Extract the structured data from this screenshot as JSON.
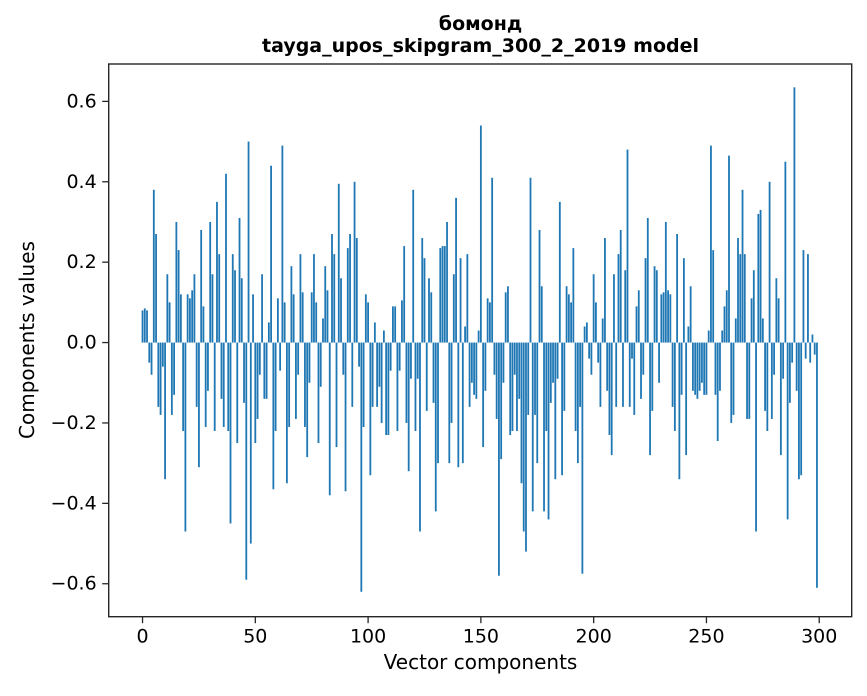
{
  "title": {
    "line1": "бомонд",
    "line2": "tayga_upos_skipgram_300_2_2019 model"
  },
  "axes": {
    "xlabel": "Vector components",
    "ylabel": "Components values",
    "x_ticks": [
      0,
      50,
      100,
      150,
      200,
      250,
      300
    ],
    "x_tick_labels": [
      "0",
      "50",
      "100",
      "150",
      "200",
      "250",
      "300"
    ],
    "y_ticks": [
      -0.6,
      -0.4,
      -0.2,
      0.0,
      0.2,
      0.4,
      0.6
    ],
    "y_tick_labels": [
      "−0.6",
      "−0.4",
      "−0.2",
      "0.0",
      "0.2",
      "0.4",
      "0.6"
    ],
    "xlim": [
      -15,
      314.4
    ],
    "ylim": [
      -0.682,
      0.693
    ]
  },
  "colors": {
    "bar": "#1f77b4",
    "spine": "#262626",
    "background": "#ffffff"
  },
  "chart_data": {
    "type": "bar",
    "title": "бомонд\ntayga_upos_skipgram_300_2_2019 model",
    "xlabel": "Vector components",
    "ylabel": "Components values",
    "x_range": [
      0,
      299
    ],
    "bar_width": 0.8,
    "bar_color": "#1f77b4",
    "grid": false,
    "legend": null,
    "xlim": [
      -15,
      314.4
    ],
    "ylim": [
      -0.682,
      0.693
    ],
    "values": [
      0.08,
      0.085,
      0.08,
      -0.05,
      -0.08,
      0.38,
      0.27,
      -0.16,
      -0.18,
      -0.06,
      -0.34,
      0.17,
      0.1,
      -0.18,
      -0.13,
      0.3,
      0.23,
      0.12,
      -0.22,
      -0.47,
      0.12,
      0.11,
      0.13,
      0.17,
      -0.16,
      -0.31,
      0.28,
      0.09,
      -0.21,
      -0.12,
      0.3,
      0.17,
      -0.22,
      0.35,
      0.22,
      -0.14,
      -0.21,
      0.42,
      -0.22,
      -0.45,
      0.22,
      0.18,
      -0.25,
      0.31,
      0.16,
      -0.15,
      -0.59,
      0.5,
      -0.5,
      0.12,
      -0.25,
      -0.19,
      -0.08,
      0.17,
      -0.14,
      -0.14,
      0.05,
      0.44,
      -0.365,
      -0.22,
      0.11,
      -0.07,
      0.49,
      0.1,
      -0.35,
      -0.21,
      0.19,
      0.12,
      -0.19,
      -0.08,
      0.22,
      0.125,
      -0.21,
      -0.285,
      -0.1,
      0.125,
      0.22,
      0.1,
      -0.25,
      -0.11,
      0.06,
      0.19,
      0.13,
      -0.38,
      0.27,
      0.22,
      -0.26,
      0.395,
      0.16,
      -0.08,
      -0.37,
      0.235,
      0.27,
      -0.16,
      0.4,
      0.26,
      -0.06,
      -0.62,
      -0.21,
      0.12,
      0.1,
      -0.33,
      -0.16,
      0.05,
      -0.16,
      -0.11,
      -0.2,
      0.03,
      -0.23,
      -0.23,
      -0.07,
      0.09,
      0.09,
      -0.22,
      -0.07,
      0.105,
      0.24,
      -0.2,
      -0.32,
      -0.09,
      0.38,
      -0.22,
      -0.09,
      -0.47,
      0.26,
      0.21,
      -0.17,
      0.16,
      0.125,
      -0.15,
      -0.42,
      -0.3,
      0.235,
      0.24,
      0.24,
      0.3,
      -0.3,
      -0.2,
      0.17,
      0.36,
      -0.31,
      0.21,
      -0.3,
      0.04,
      0.22,
      -0.16,
      -0.1,
      -0.13,
      -0.14,
      0.03,
      0.54,
      -0.26,
      -0.12,
      0.11,
      0.1,
      0.41,
      -0.08,
      -0.19,
      -0.58,
      -0.29,
      -0.1,
      0.125,
      0.14,
      -0.23,
      -0.22,
      -0.08,
      -0.22,
      -0.14,
      -0.35,
      -0.47,
      -0.52,
      -0.18,
      0.41,
      -0.42,
      -0.18,
      -0.3,
      0.28,
      0.14,
      -0.42,
      -0.22,
      -0.44,
      -0.15,
      -0.1,
      -0.34,
      -0.09,
      0.35,
      -0.33,
      -0.17,
      0.14,
      0.12,
      0.1,
      0.235,
      -0.22,
      -0.3,
      -0.16,
      -0.575,
      0.04,
      0.05,
      -0.04,
      -0.08,
      0.17,
      0.1,
      -0.05,
      -0.16,
      0.06,
      0.26,
      -0.12,
      -0.23,
      -0.28,
      0.17,
      -0.16,
      0.22,
      0.28,
      -0.16,
      0.18,
      0.48,
      -0.16,
      -0.04,
      -0.18,
      0.09,
      0.13,
      -0.14,
      -0.08,
      0.21,
      0.31,
      -0.28,
      -0.17,
      0.19,
      0.18,
      -0.1,
      0.12,
      0.125,
      0.3,
      0.13,
      0.12,
      -0.16,
      -0.22,
      0.27,
      -0.34,
      -0.13,
      0.21,
      -0.28,
      0.04,
      0.14,
      -0.12,
      -0.13,
      -0.14,
      -0.12,
      -0.1,
      -0.13,
      -0.13,
      0.03,
      0.49,
      0.23,
      -0.13,
      -0.245,
      -0.12,
      0.03,
      0.09,
      0.13,
      0.465,
      -0.2,
      -0.18,
      0.06,
      0.26,
      0.22,
      0.38,
      0.22,
      -0.19,
      -0.19,
      0.11,
      0.18,
      -0.47,
      0.32,
      0.33,
      0.06,
      -0.17,
      -0.22,
      0.4,
      -0.19,
      -0.08,
      0.16,
      0.11,
      -0.28,
      -0.09,
      0.45,
      -0.44,
      -0.15,
      -0.05,
      0.635,
      -0.12,
      -0.34,
      -0.33,
      0.23,
      -0.04,
      0.22,
      -0.05,
      0.02,
      -0.03,
      -0.61
    ]
  }
}
